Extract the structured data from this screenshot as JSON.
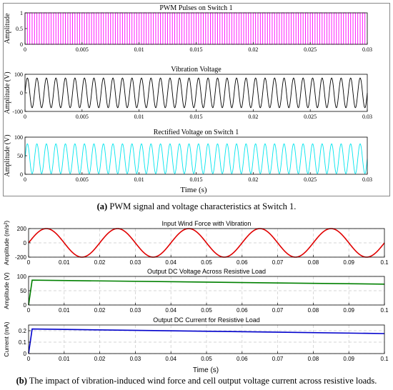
{
  "panel_a": {
    "caption_tag": "(a)",
    "caption_text": " PWM signal and voltage characteristics at Switch 1.",
    "xlabel": "Time (s)"
  },
  "panel_b": {
    "caption_tag": "(b)",
    "caption_text": " The impact of vibration-induced wind force and cell output voltage current across resistive loads.",
    "xlabel": "Time (s)"
  },
  "colors": {
    "pwm": "#ff00ff",
    "vibration": "#000000",
    "rectified": "#00e5ee",
    "wind": "#e00000",
    "dc_voltage": "#008000",
    "dc_current": "#0000cc"
  },
  "chart_data": [
    {
      "id": "a1",
      "type": "line",
      "title": "PWM Pulses on Switch 1",
      "xlabel": "",
      "ylabel": "Amplitude",
      "xlim": [
        0,
        0.03
      ],
      "ylim": [
        0,
        1
      ],
      "xticks": [
        "0",
        "0.005",
        "0.01",
        "0.015",
        "0.02",
        "0.025",
        "0.03"
      ],
      "yticks": [
        "0",
        "0.5",
        "1"
      ],
      "grid": false,
      "series": [
        {
          "signal": "pwm square wave",
          "levels": [
            0,
            1
          ],
          "pulse_count": 72,
          "color": "#ff00ff"
        }
      ]
    },
    {
      "id": "a2",
      "type": "line",
      "title": "Vibration Voltage",
      "xlabel": "",
      "ylabel": "Amplitude (V)",
      "xlim": [
        0,
        0.03
      ],
      "ylim": [
        -100,
        100
      ],
      "xticks": [
        "0",
        "0.005",
        "0.01",
        "0.015",
        "0.02",
        "0.025",
        "0.03"
      ],
      "yticks": [
        "-100",
        "0",
        "100"
      ],
      "grid": false,
      "series": [
        {
          "signal": "sine",
          "amplitude": 80,
          "cycles": 36,
          "color": "#000000"
        }
      ]
    },
    {
      "id": "a3",
      "type": "line",
      "title": "Rectified Voltage on Switch 1",
      "xlabel": "Time (s)",
      "ylabel": "Amplitude (V)",
      "xlim": [
        0,
        0.03
      ],
      "ylim": [
        0,
        100
      ],
      "xticks": [
        "0",
        "0.005",
        "0.01",
        "0.015",
        "0.02",
        "0.025",
        "0.03"
      ],
      "yticks": [
        "0",
        "50",
        "100"
      ],
      "grid": false,
      "series": [
        {
          "signal": "sine",
          "offset": 42,
          "amplitude": 40,
          "cycles": 36,
          "color": "#00e5ee"
        }
      ]
    },
    {
      "id": "b1",
      "type": "line",
      "title": "Input Wind Force with Vibration",
      "xlabel": "",
      "ylabel": "Amplitude (m/s²)",
      "xlim": [
        0,
        0.1
      ],
      "ylim": [
        -200,
        200
      ],
      "xticks": [
        "0",
        "0.01",
        "0.02",
        "0.03",
        "0.04",
        "0.05",
        "0.06",
        "0.07",
        "0.08",
        "0.09",
        "0.1"
      ],
      "yticks": [
        "-200",
        "0",
        "200"
      ],
      "grid": true,
      "series": [
        {
          "signal": "sine",
          "amplitude": 200,
          "cycles": 5,
          "color": "#e00000"
        }
      ]
    },
    {
      "id": "b2",
      "type": "line",
      "title": "Output DC Voltage Across Resistive Load",
      "xlabel": "",
      "ylabel": "Amplitude (V)",
      "xlim": [
        0,
        0.1
      ],
      "ylim": [
        0,
        100
      ],
      "xticks": [
        "0",
        "0.01",
        "0.02",
        "0.03",
        "0.04",
        "0.05",
        "0.06",
        "0.07",
        "0.08",
        "0.09",
        "0.1"
      ],
      "yticks": [
        "0",
        "50",
        "100"
      ],
      "grid": true,
      "series": [
        {
          "signal": "step then linear decay",
          "x": [
            0,
            0.001,
            0.1
          ],
          "y": [
            0,
            87,
            73
          ],
          "color": "#008000"
        }
      ]
    },
    {
      "id": "b3",
      "type": "line",
      "title": "Output DC Current for Resistive Load",
      "xlabel": "Time (s)",
      "ylabel": "Current (mA)",
      "xlim": [
        0,
        0.1
      ],
      "ylim": [
        0,
        0.25
      ],
      "xticks": [
        "0",
        "0.01",
        "0.02",
        "0.03",
        "0.04",
        "0.05",
        "0.06",
        "0.07",
        "0.08",
        "0.09",
        "0.1"
      ],
      "yticks": [
        "0",
        "0.1",
        "0.2"
      ],
      "grid": true,
      "series": [
        {
          "signal": "step then linear decay",
          "x": [
            0,
            0.001,
            0.1
          ],
          "y": [
            0,
            0.215,
            0.175
          ],
          "color": "#0000cc"
        }
      ]
    }
  ]
}
